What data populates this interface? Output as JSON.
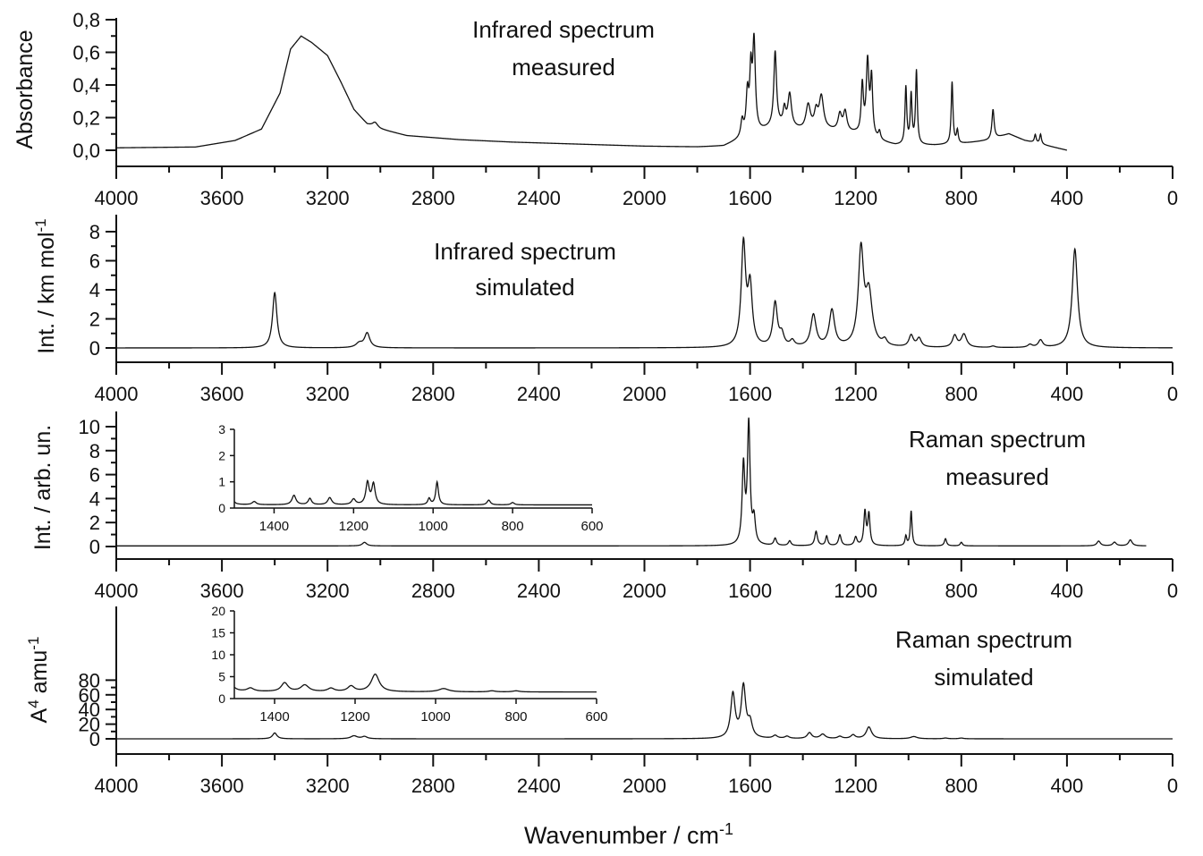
{
  "figure": {
    "x_axis_title_main": "Wavenumber / cm",
    "x_axis_title_sup": "-1"
  },
  "chart_data": [
    {
      "type": "line",
      "panel": "ir-measured",
      "title_lines": [
        "Infrared spectrum",
        "measured"
      ],
      "ylabel": "Absorbance",
      "ylabel_sup": "",
      "xlim": [
        4000,
        0
      ],
      "ylim": [
        -0.1,
        0.85
      ],
      "xticks": [
        4000,
        3600,
        3200,
        2800,
        2400,
        2000,
        1600,
        1200,
        800,
        400,
        0
      ],
      "yticks": [
        "0,0",
        "0,2",
        "0,4",
        "0,6",
        "0,8"
      ],
      "ytick_values": [
        0,
        0.2,
        0.4,
        0.6,
        0.8
      ],
      "x_range": [
        400,
        4000
      ],
      "baseline": [
        [
          4000,
          0.015
        ],
        [
          3700,
          0.02
        ],
        [
          3550,
          0.06
        ],
        [
          3450,
          0.13
        ],
        [
          3380,
          0.35
        ],
        [
          3340,
          0.62
        ],
        [
          3300,
          0.7
        ],
        [
          3260,
          0.66
        ],
        [
          3200,
          0.58
        ],
        [
          3150,
          0.42
        ],
        [
          3100,
          0.25
        ],
        [
          3050,
          0.16
        ],
        [
          3000,
          0.13
        ],
        [
          2900,
          0.09
        ],
        [
          2700,
          0.065
        ],
        [
          2500,
          0.05
        ],
        [
          2200,
          0.035
        ],
        [
          2000,
          0.025
        ],
        [
          1800,
          0.02
        ],
        [
          1700,
          0.025
        ],
        [
          1660,
          0.05
        ],
        [
          1500,
          0.15
        ],
        [
          1400,
          0.12
        ],
        [
          1300,
          0.12
        ],
        [
          1200,
          0.1
        ],
        [
          1100,
          0.05
        ],
        [
          1050,
          0.03
        ],
        [
          900,
          0.03
        ],
        [
          800,
          0.04
        ],
        [
          700,
          0.06
        ],
        [
          620,
          0.1
        ],
        [
          560,
          0.06
        ],
        [
          480,
          0.03
        ],
        [
          400,
          0.0
        ]
      ],
      "peaks": [
        [
          3020,
          0.03,
          12
        ],
        [
          1630,
          0.1,
          6
        ],
        [
          1610,
          0.25,
          6
        ],
        [
          1597,
          0.35,
          5
        ],
        [
          1585,
          0.55,
          6
        ],
        [
          1505,
          0.45,
          6
        ],
        [
          1470,
          0.1,
          6
        ],
        [
          1450,
          0.2,
          8
        ],
        [
          1380,
          0.15,
          10
        ],
        [
          1350,
          0.1,
          8
        ],
        [
          1330,
          0.2,
          10
        ],
        [
          1260,
          0.1,
          8
        ],
        [
          1240,
          0.12,
          8
        ],
        [
          1175,
          0.3,
          5
        ],
        [
          1155,
          0.45,
          6
        ],
        [
          1140,
          0.35,
          5
        ],
        [
          1110,
          0.05,
          5
        ],
        [
          1010,
          0.35,
          4
        ],
        [
          990,
          0.3,
          4
        ],
        [
          970,
          0.45,
          4
        ],
        [
          835,
          0.38,
          4
        ],
        [
          815,
          0.08,
          4
        ],
        [
          680,
          0.18,
          5
        ],
        [
          520,
          0.05,
          4
        ],
        [
          500,
          0.06,
          4
        ]
      ]
    },
    {
      "type": "line",
      "panel": "ir-simulated",
      "title_lines": [
        "Infrared spectrum",
        "simulated"
      ],
      "ylabel": "Int. / km mol",
      "ylabel_sup": "-1",
      "xlim": [
        4000,
        0
      ],
      "ylim": [
        -1,
        9
      ],
      "xticks": [
        4000,
        3600,
        3200,
        2800,
        2400,
        2000,
        1600,
        1200,
        800,
        400,
        0
      ],
      "yticks": [
        "0",
        "2",
        "4",
        "6",
        "8"
      ],
      "ytick_values": [
        0,
        2,
        4,
        6,
        8
      ],
      "x_range": [
        0,
        4000
      ],
      "baseline": [
        [
          4000,
          0
        ],
        [
          0,
          0
        ]
      ],
      "peaks": [
        [
          3400,
          3.8,
          10
        ],
        [
          3080,
          0.3,
          15
        ],
        [
          3050,
          1.0,
          12
        ],
        [
          1625,
          7.0,
          10
        ],
        [
          1600,
          4.0,
          10
        ],
        [
          1505,
          3.0,
          10
        ],
        [
          1480,
          0.8,
          10
        ],
        [
          1440,
          0.4,
          10
        ],
        [
          1360,
          2.2,
          12
        ],
        [
          1290,
          2.5,
          12
        ],
        [
          1180,
          6.5,
          12
        ],
        [
          1150,
          3.5,
          15
        ],
        [
          1090,
          0.4,
          10
        ],
        [
          990,
          0.8,
          10
        ],
        [
          960,
          0.6,
          10
        ],
        [
          825,
          0.8,
          10
        ],
        [
          790,
          0.9,
          12
        ],
        [
          680,
          0.1,
          10
        ],
        [
          540,
          0.2,
          10
        ],
        [
          500,
          0.5,
          10
        ],
        [
          370,
          6.8,
          12
        ]
      ]
    },
    {
      "type": "line",
      "panel": "raman-measured",
      "title_lines": [
        "Raman spectrum",
        "measured"
      ],
      "ylabel": "Int. / arb. un.",
      "ylabel_sup": "",
      "xlim": [
        4000,
        0
      ],
      "ylim": [
        -1,
        10.5
      ],
      "xticks": [
        4000,
        3600,
        3200,
        2800,
        2400,
        2000,
        1600,
        1200,
        800,
        400,
        0
      ],
      "yticks": [
        "0",
        "2",
        "4",
        "6",
        "8",
        "10"
      ],
      "ytick_values": [
        0,
        2,
        4,
        6,
        8,
        10
      ],
      "x_range": [
        100,
        4000
      ],
      "baseline": [
        [
          4000,
          0.05
        ],
        [
          100,
          0.05
        ]
      ],
      "peaks": [
        [
          3060,
          0.3,
          10
        ],
        [
          1625,
          6.5,
          6
        ],
        [
          1605,
          10.0,
          6
        ],
        [
          1585,
          2.0,
          6
        ],
        [
          1505,
          0.6,
          6
        ],
        [
          1450,
          0.4,
          6
        ],
        [
          1350,
          1.2,
          6
        ],
        [
          1310,
          0.8,
          5
        ],
        [
          1260,
          0.9,
          6
        ],
        [
          1200,
          0.7,
          6
        ],
        [
          1165,
          2.8,
          5
        ],
        [
          1150,
          2.6,
          5
        ],
        [
          1010,
          0.8,
          4
        ],
        [
          990,
          2.9,
          4
        ],
        [
          860,
          0.6,
          5
        ],
        [
          800,
          0.3,
          5
        ],
        [
          280,
          0.4,
          8
        ],
        [
          220,
          0.3,
          8
        ],
        [
          160,
          0.5,
          8
        ]
      ],
      "inset": {
        "xlim": [
          1500,
          600
        ],
        "ylim": [
          0,
          3
        ],
        "xticks": [
          1400,
          1200,
          1000,
          800,
          600
        ],
        "yticks": [
          "0",
          "1",
          "2",
          "3"
        ],
        "ytick_values": [
          0,
          1,
          2,
          3
        ]
      }
    },
    {
      "type": "line",
      "panel": "raman-simulated",
      "title_lines": [
        "Raman spectrum",
        "simulated"
      ],
      "ylabel": "A",
      "ylabel_sup_mid": "4",
      "ylabel_tail": " amu",
      "ylabel_sup": "-1",
      "xlim": [
        4000,
        0
      ],
      "ylim": [
        -10,
        90
      ],
      "xticks": [
        4000,
        3600,
        3200,
        2800,
        2400,
        2000,
        1600,
        1200,
        800,
        400,
        0
      ],
      "yticks": [
        "0",
        "20",
        "40",
        "60",
        "80"
      ],
      "ytick_values": [
        0,
        20,
        40,
        60,
        80
      ],
      "x_range": [
        0,
        4000
      ],
      "baseline": [
        [
          4000,
          0
        ],
        [
          0,
          0
        ]
      ],
      "peaks": [
        [
          3400,
          8,
          10
        ],
        [
          3100,
          4,
          15
        ],
        [
          3060,
          3,
          12
        ],
        [
          1665,
          60,
          10
        ],
        [
          1625,
          70,
          10
        ],
        [
          1600,
          20,
          10
        ],
        [
          1505,
          4,
          10
        ],
        [
          1460,
          3,
          10
        ],
        [
          1375,
          8,
          10
        ],
        [
          1325,
          6,
          12
        ],
        [
          1260,
          3,
          10
        ],
        [
          1210,
          5,
          10
        ],
        [
          1150,
          16,
          12
        ],
        [
          980,
          3,
          15
        ],
        [
          860,
          1,
          10
        ],
        [
          800,
          1,
          10
        ]
      ],
      "inset": {
        "xlim": [
          1500,
          600
        ],
        "ylim": [
          0,
          20
        ],
        "xticks": [
          1400,
          1200,
          1000,
          800,
          600
        ],
        "yticks": [
          "0",
          "5",
          "10",
          "15",
          "20"
        ],
        "ytick_values": [
          0,
          5,
          10,
          15,
          20
        ]
      }
    }
  ]
}
